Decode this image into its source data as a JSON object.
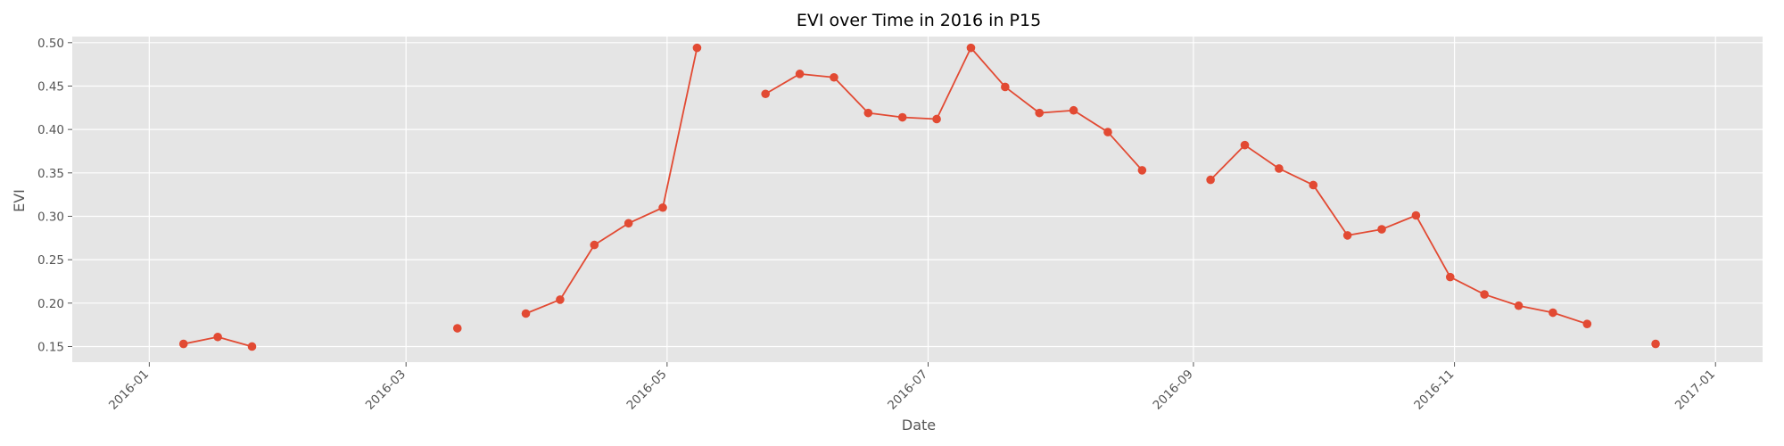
{
  "chart_data": {
    "type": "line",
    "title": "EVI over Time in 2016 in P15",
    "xlabel": "Date",
    "ylabel": "EVI",
    "x_axis_type": "date",
    "xlim": [
      "2015-12-14",
      "2017-01-12"
    ],
    "ylim": [
      0.132,
      0.507
    ],
    "grid": true,
    "background_color": "#E5E5E5",
    "series": [
      {
        "color": "#E24A33",
        "marker": "circle",
        "points": [
          {
            "x": "2016-01-09",
            "y": 0.153
          },
          {
            "x": "2016-01-17",
            "y": 0.161
          },
          {
            "x": "2016-01-25",
            "y": 0.15
          },
          {
            "x": "2016-02-02",
            "y": null
          },
          {
            "x": "2016-03-13",
            "y": 0.171
          },
          {
            "x": "2016-03-21",
            "y": null
          },
          {
            "x": "2016-03-29",
            "y": 0.188
          },
          {
            "x": "2016-04-06",
            "y": 0.204
          },
          {
            "x": "2016-04-14",
            "y": 0.267
          },
          {
            "x": "2016-04-22",
            "y": 0.292
          },
          {
            "x": "2016-04-30",
            "y": 0.31
          },
          {
            "x": "2016-05-08",
            "y": 0.494
          },
          {
            "x": "2016-05-16",
            "y": null
          },
          {
            "x": "2016-05-24",
            "y": 0.441
          },
          {
            "x": "2016-06-01",
            "y": 0.464
          },
          {
            "x": "2016-06-09",
            "y": 0.46
          },
          {
            "x": "2016-06-17",
            "y": 0.419
          },
          {
            "x": "2016-06-25",
            "y": 0.414
          },
          {
            "x": "2016-07-03",
            "y": 0.412
          },
          {
            "x": "2016-07-11",
            "y": 0.494
          },
          {
            "x": "2016-07-19",
            "y": 0.449
          },
          {
            "x": "2016-07-27",
            "y": 0.419
          },
          {
            "x": "2016-08-04",
            "y": 0.422
          },
          {
            "x": "2016-08-12",
            "y": 0.397
          },
          {
            "x": "2016-08-20",
            "y": 0.353
          },
          {
            "x": "2016-08-28",
            "y": null
          },
          {
            "x": "2016-09-05",
            "y": 0.342
          },
          {
            "x": "2016-09-13",
            "y": 0.382
          },
          {
            "x": "2016-09-21",
            "y": 0.355
          },
          {
            "x": "2016-09-29",
            "y": 0.336
          },
          {
            "x": "2016-10-07",
            "y": 0.278
          },
          {
            "x": "2016-10-15",
            "y": 0.285
          },
          {
            "x": "2016-10-23",
            "y": 0.301
          },
          {
            "x": "2016-10-31",
            "y": 0.23
          },
          {
            "x": "2016-11-08",
            "y": 0.21
          },
          {
            "x": "2016-11-16",
            "y": 0.197
          },
          {
            "x": "2016-11-24",
            "y": 0.189
          },
          {
            "x": "2016-12-02",
            "y": 0.176
          },
          {
            "x": "2016-12-10",
            "y": null
          },
          {
            "x": "2016-12-18",
            "y": 0.153
          }
        ]
      }
    ],
    "x_ticks": [
      {
        "date": "2016-01-01",
        "label": "2016-01"
      },
      {
        "date": "2016-03-01",
        "label": "2016-03"
      },
      {
        "date": "2016-05-01",
        "label": "2016-05"
      },
      {
        "date": "2016-07-01",
        "label": "2016-07"
      },
      {
        "date": "2016-09-01",
        "label": "2016-09"
      },
      {
        "date": "2016-11-01",
        "label": "2016-11"
      },
      {
        "date": "2017-01-01",
        "label": "2017-01"
      }
    ],
    "y_ticks": [
      {
        "value": 0.15,
        "label": "0.15"
      },
      {
        "value": 0.2,
        "label": "0.20"
      },
      {
        "value": 0.25,
        "label": "0.25"
      },
      {
        "value": 0.3,
        "label": "0.30"
      },
      {
        "value": 0.35,
        "label": "0.35"
      },
      {
        "value": 0.4,
        "label": "0.40"
      },
      {
        "value": 0.45,
        "label": "0.45"
      },
      {
        "value": 0.5,
        "label": "0.50"
      }
    ]
  }
}
